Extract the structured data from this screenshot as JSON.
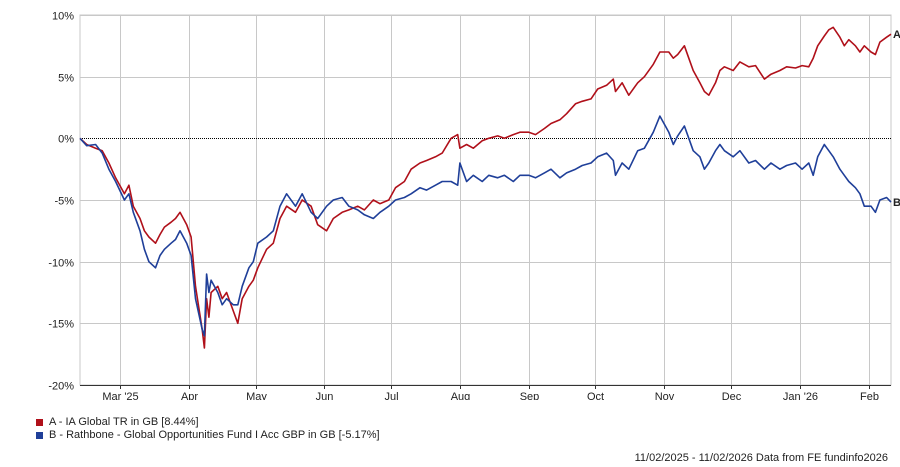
{
  "chart_data": {
    "type": "line",
    "title": "",
    "xlabel": "",
    "ylabel": "",
    "ylim": [
      -20,
      10
    ],
    "y_ticks": [
      10,
      5,
      0,
      -5,
      -10,
      -15,
      -20
    ],
    "y_tick_labels": [
      "10%",
      "5%",
      "0%",
      "-5%",
      "-10%",
      "-15%",
      "-20%"
    ],
    "x_range": [
      "2025-02-11",
      "2026-02-11"
    ],
    "x_ticks": [
      {
        "date": "2025-03-01",
        "label": "Mar '25"
      },
      {
        "date": "2025-04-01",
        "label": "Apr"
      },
      {
        "date": "2025-05-01",
        "label": "May"
      },
      {
        "date": "2025-06-01",
        "label": "Jun"
      },
      {
        "date": "2025-07-01",
        "label": "Jul"
      },
      {
        "date": "2025-08-01",
        "label": "Aug"
      },
      {
        "date": "2025-09-01",
        "label": "Sep"
      },
      {
        "date": "2025-10-01",
        "label": "Oct"
      },
      {
        "date": "2025-11-01",
        "label": "Nov"
      },
      {
        "date": "2025-12-01",
        "label": "Dec"
      },
      {
        "date": "2026-01-01",
        "label": "Jan '26"
      },
      {
        "date": "2026-02-01",
        "label": "Feb"
      }
    ],
    "grid": true,
    "legend_position": "bottom-left",
    "series": [
      {
        "name": "A - IA Global TR in GB [8.44%]",
        "end_label": "A",
        "color": "#b0101a",
        "points": [
          [
            "2025-02-11",
            0
          ],
          [
            "2025-02-14",
            -0.5
          ],
          [
            "2025-02-18",
            -0.8
          ],
          [
            "2025-02-21",
            -1.0
          ],
          [
            "2025-02-24",
            -2.0
          ],
          [
            "2025-02-27",
            -3.2
          ],
          [
            "2025-03-03",
            -4.5
          ],
          [
            "2025-03-05",
            -3.8
          ],
          [
            "2025-03-07",
            -5.5
          ],
          [
            "2025-03-10",
            -6.5
          ],
          [
            "2025-03-12",
            -7.5
          ],
          [
            "2025-03-14",
            -8.0
          ],
          [
            "2025-03-17",
            -8.5
          ],
          [
            "2025-03-19",
            -7.8
          ],
          [
            "2025-03-21",
            -7.2
          ],
          [
            "2025-03-24",
            -6.8
          ],
          [
            "2025-03-26",
            -6.5
          ],
          [
            "2025-03-28",
            -6.0
          ],
          [
            "2025-03-31",
            -7.0
          ],
          [
            "2025-04-02",
            -8.0
          ],
          [
            "2025-04-04",
            -12.0
          ],
          [
            "2025-04-07",
            -15.5
          ],
          [
            "2025-04-08",
            -17.0
          ],
          [
            "2025-04-09",
            -13.0
          ],
          [
            "2025-04-10",
            -14.5
          ],
          [
            "2025-04-11",
            -12.5
          ],
          [
            "2025-04-14",
            -12.0
          ],
          [
            "2025-04-16",
            -13.0
          ],
          [
            "2025-04-18",
            -12.5
          ],
          [
            "2025-04-21",
            -14.0
          ],
          [
            "2025-04-23",
            -15.0
          ],
          [
            "2025-04-25",
            -13.0
          ],
          [
            "2025-04-28",
            -12.0
          ],
          [
            "2025-04-30",
            -11.5
          ],
          [
            "2025-05-02",
            -10.5
          ],
          [
            "2025-05-06",
            -9.0
          ],
          [
            "2025-05-09",
            -8.5
          ],
          [
            "2025-05-12",
            -6.5
          ],
          [
            "2025-05-15",
            -5.5
          ],
          [
            "2025-05-19",
            -6.0
          ],
          [
            "2025-05-22",
            -5.0
          ],
          [
            "2025-05-26",
            -5.5
          ],
          [
            "2025-05-29",
            -7.0
          ],
          [
            "2025-06-02",
            -7.5
          ],
          [
            "2025-06-05",
            -6.5
          ],
          [
            "2025-06-09",
            -6.0
          ],
          [
            "2025-06-12",
            -5.8
          ],
          [
            "2025-06-16",
            -5.5
          ],
          [
            "2025-06-19",
            -5.8
          ],
          [
            "2025-06-23",
            -5.0
          ],
          [
            "2025-06-26",
            -5.3
          ],
          [
            "2025-06-30",
            -5.0
          ],
          [
            "2025-07-03",
            -4.0
          ],
          [
            "2025-07-07",
            -3.5
          ],
          [
            "2025-07-10",
            -2.5
          ],
          [
            "2025-07-14",
            -2.0
          ],
          [
            "2025-07-17",
            -1.8
          ],
          [
            "2025-07-21",
            -1.5
          ],
          [
            "2025-07-24",
            -1.2
          ],
          [
            "2025-07-28",
            0.0
          ],
          [
            "2025-07-31",
            0.3
          ],
          [
            "2025-08-01",
            -0.8
          ],
          [
            "2025-08-04",
            -0.5
          ],
          [
            "2025-08-07",
            -0.8
          ],
          [
            "2025-08-11",
            -0.2
          ],
          [
            "2025-08-14",
            0.0
          ],
          [
            "2025-08-18",
            0.2
          ],
          [
            "2025-08-21",
            0.0
          ],
          [
            "2025-08-25",
            0.3
          ],
          [
            "2025-08-28",
            0.5
          ],
          [
            "2025-09-01",
            0.5
          ],
          [
            "2025-09-04",
            0.3
          ],
          [
            "2025-09-08",
            0.8
          ],
          [
            "2025-09-11",
            1.2
          ],
          [
            "2025-09-15",
            1.5
          ],
          [
            "2025-09-18",
            2.0
          ],
          [
            "2025-09-22",
            2.8
          ],
          [
            "2025-09-25",
            3.0
          ],
          [
            "2025-09-29",
            3.2
          ],
          [
            "2025-10-02",
            4.0
          ],
          [
            "2025-10-06",
            4.3
          ],
          [
            "2025-10-09",
            4.8
          ],
          [
            "2025-10-10",
            3.8
          ],
          [
            "2025-10-13",
            4.5
          ],
          [
            "2025-10-16",
            3.5
          ],
          [
            "2025-10-20",
            4.5
          ],
          [
            "2025-10-23",
            5.0
          ],
          [
            "2025-10-27",
            6.0
          ],
          [
            "2025-10-30",
            7.0
          ],
          [
            "2025-11-03",
            7.0
          ],
          [
            "2025-11-05",
            6.5
          ],
          [
            "2025-11-07",
            6.8
          ],
          [
            "2025-11-10",
            7.5
          ],
          [
            "2025-11-12",
            6.5
          ],
          [
            "2025-11-14",
            5.5
          ],
          [
            "2025-11-17",
            4.5
          ],
          [
            "2025-11-19",
            3.8
          ],
          [
            "2025-11-21",
            3.5
          ],
          [
            "2025-11-24",
            4.5
          ],
          [
            "2025-11-26",
            5.5
          ],
          [
            "2025-11-28",
            5.8
          ],
          [
            "2025-12-02",
            5.5
          ],
          [
            "2025-12-05",
            6.2
          ],
          [
            "2025-12-09",
            5.8
          ],
          [
            "2025-12-12",
            5.9
          ],
          [
            "2025-12-16",
            4.8
          ],
          [
            "2025-12-19",
            5.2
          ],
          [
            "2025-12-23",
            5.5
          ],
          [
            "2025-12-26",
            5.8
          ],
          [
            "2025-12-30",
            5.7
          ],
          [
            "2026-01-02",
            5.9
          ],
          [
            "2026-01-05",
            5.8
          ],
          [
            "2026-01-07",
            6.5
          ],
          [
            "2026-01-09",
            7.5
          ],
          [
            "2026-01-12",
            8.3
          ],
          [
            "2026-01-14",
            8.8
          ],
          [
            "2026-01-16",
            9.0
          ],
          [
            "2026-01-19",
            8.2
          ],
          [
            "2026-01-21",
            7.5
          ],
          [
            "2026-01-23",
            8.0
          ],
          [
            "2026-01-26",
            7.5
          ],
          [
            "2026-01-28",
            7.0
          ],
          [
            "2026-01-30",
            7.5
          ],
          [
            "2026-02-02",
            7.0
          ],
          [
            "2026-02-04",
            6.8
          ],
          [
            "2026-02-06",
            7.8
          ],
          [
            "2026-02-09",
            8.2
          ],
          [
            "2026-02-11",
            8.44
          ]
        ]
      },
      {
        "name": "B - Rathbone - Global Opportunities Fund I Acc GBP in GB [-5.17%]",
        "end_label": "B",
        "color": "#1f3f99",
        "points": [
          [
            "2025-02-11",
            0
          ],
          [
            "2025-02-14",
            -0.6
          ],
          [
            "2025-02-18",
            -0.5
          ],
          [
            "2025-02-21",
            -1.2
          ],
          [
            "2025-02-24",
            -2.5
          ],
          [
            "2025-02-27",
            -3.5
          ],
          [
            "2025-03-03",
            -5.0
          ],
          [
            "2025-03-05",
            -4.5
          ],
          [
            "2025-03-07",
            -6.0
          ],
          [
            "2025-03-10",
            -7.5
          ],
          [
            "2025-03-12",
            -9.0
          ],
          [
            "2025-03-14",
            -10.0
          ],
          [
            "2025-03-17",
            -10.5
          ],
          [
            "2025-03-19",
            -9.5
          ],
          [
            "2025-03-21",
            -9.0
          ],
          [
            "2025-03-24",
            -8.5
          ],
          [
            "2025-03-26",
            -8.2
          ],
          [
            "2025-03-28",
            -7.5
          ],
          [
            "2025-03-31",
            -8.5
          ],
          [
            "2025-04-02",
            -9.5
          ],
          [
            "2025-04-04",
            -13.0
          ],
          [
            "2025-04-07",
            -15.5
          ],
          [
            "2025-04-08",
            -16.0
          ],
          [
            "2025-04-09",
            -11.0
          ],
          [
            "2025-04-10",
            -12.5
          ],
          [
            "2025-04-11",
            -11.5
          ],
          [
            "2025-04-14",
            -12.5
          ],
          [
            "2025-04-16",
            -13.5
          ],
          [
            "2025-04-18",
            -13.0
          ],
          [
            "2025-04-21",
            -13.5
          ],
          [
            "2025-04-23",
            -13.5
          ],
          [
            "2025-04-25",
            -12.0
          ],
          [
            "2025-04-28",
            -10.5
          ],
          [
            "2025-04-30",
            -10.0
          ],
          [
            "2025-05-02",
            -8.5
          ],
          [
            "2025-05-06",
            -8.0
          ],
          [
            "2025-05-09",
            -7.5
          ],
          [
            "2025-05-12",
            -5.5
          ],
          [
            "2025-05-15",
            -4.5
          ],
          [
            "2025-05-19",
            -5.5
          ],
          [
            "2025-05-22",
            -4.5
          ],
          [
            "2025-05-26",
            -6.0
          ],
          [
            "2025-05-29",
            -6.5
          ],
          [
            "2025-06-02",
            -5.5
          ],
          [
            "2025-06-05",
            -5.0
          ],
          [
            "2025-06-09",
            -4.8
          ],
          [
            "2025-06-12",
            -5.5
          ],
          [
            "2025-06-16",
            -5.8
          ],
          [
            "2025-06-19",
            -6.2
          ],
          [
            "2025-06-23",
            -6.5
          ],
          [
            "2025-06-26",
            -6.0
          ],
          [
            "2025-06-30",
            -5.5
          ],
          [
            "2025-07-03",
            -5.0
          ],
          [
            "2025-07-07",
            -4.8
          ],
          [
            "2025-07-10",
            -4.5
          ],
          [
            "2025-07-14",
            -4.0
          ],
          [
            "2025-07-17",
            -4.2
          ],
          [
            "2025-07-21",
            -3.8
          ],
          [
            "2025-07-24",
            -3.5
          ],
          [
            "2025-07-28",
            -3.5
          ],
          [
            "2025-07-31",
            -3.8
          ],
          [
            "2025-08-01",
            -2.0
          ],
          [
            "2025-08-04",
            -3.5
          ],
          [
            "2025-08-07",
            -3.0
          ],
          [
            "2025-08-11",
            -3.5
          ],
          [
            "2025-08-14",
            -3.0
          ],
          [
            "2025-08-18",
            -3.2
          ],
          [
            "2025-08-21",
            -3.0
          ],
          [
            "2025-08-25",
            -3.5
          ],
          [
            "2025-08-28",
            -3.0
          ],
          [
            "2025-09-01",
            -3.0
          ],
          [
            "2025-09-04",
            -3.2
          ],
          [
            "2025-09-08",
            -2.8
          ],
          [
            "2025-09-11",
            -2.5
          ],
          [
            "2025-09-15",
            -3.2
          ],
          [
            "2025-09-18",
            -2.8
          ],
          [
            "2025-09-22",
            -2.5
          ],
          [
            "2025-09-25",
            -2.2
          ],
          [
            "2025-09-29",
            -2.0
          ],
          [
            "2025-10-02",
            -1.5
          ],
          [
            "2025-10-06",
            -1.2
          ],
          [
            "2025-10-09",
            -1.8
          ],
          [
            "2025-10-10",
            -3.0
          ],
          [
            "2025-10-13",
            -2.0
          ],
          [
            "2025-10-16",
            -2.5
          ],
          [
            "2025-10-20",
            -1.0
          ],
          [
            "2025-10-23",
            -0.8
          ],
          [
            "2025-10-27",
            0.5
          ],
          [
            "2025-10-30",
            1.8
          ],
          [
            "2025-11-03",
            0.5
          ],
          [
            "2025-11-05",
            -0.5
          ],
          [
            "2025-11-07",
            0.2
          ],
          [
            "2025-11-10",
            1.0
          ],
          [
            "2025-11-12",
            0.0
          ],
          [
            "2025-11-14",
            -1.0
          ],
          [
            "2025-11-17",
            -1.5
          ],
          [
            "2025-11-19",
            -2.5
          ],
          [
            "2025-11-21",
            -2.0
          ],
          [
            "2025-11-24",
            -1.0
          ],
          [
            "2025-11-26",
            -0.5
          ],
          [
            "2025-11-28",
            -1.0
          ],
          [
            "2025-12-02",
            -1.5
          ],
          [
            "2025-12-05",
            -1.0
          ],
          [
            "2025-12-09",
            -2.0
          ],
          [
            "2025-12-12",
            -1.8
          ],
          [
            "2025-12-16",
            -2.5
          ],
          [
            "2025-12-19",
            -2.0
          ],
          [
            "2025-12-23",
            -2.5
          ],
          [
            "2025-12-26",
            -2.2
          ],
          [
            "2025-12-30",
            -2.0
          ],
          [
            "2026-01-02",
            -2.5
          ],
          [
            "2026-01-05",
            -2.0
          ],
          [
            "2026-01-07",
            -3.0
          ],
          [
            "2026-01-09",
            -1.5
          ],
          [
            "2026-01-12",
            -0.5
          ],
          [
            "2026-01-14",
            -1.0
          ],
          [
            "2026-01-16",
            -1.5
          ],
          [
            "2026-01-19",
            -2.5
          ],
          [
            "2026-01-21",
            -3.0
          ],
          [
            "2026-01-23",
            -3.5
          ],
          [
            "2026-01-26",
            -4.0
          ],
          [
            "2026-01-28",
            -4.5
          ],
          [
            "2026-01-30",
            -5.5
          ],
          [
            "2026-02-02",
            -5.5
          ],
          [
            "2026-02-04",
            -6.0
          ],
          [
            "2026-02-06",
            -5.0
          ],
          [
            "2026-02-09",
            -4.8
          ],
          [
            "2026-02-11",
            -5.17
          ]
        ]
      }
    ]
  },
  "legend": {
    "items": [
      {
        "label": "A - IA Global TR in GB [8.44%]",
        "color": "#b0101a"
      },
      {
        "label": "B - Rathbone - Global Opportunities Fund I Acc GBP in GB [-5.17%]",
        "color": "#1f3f99"
      }
    ]
  },
  "footer": {
    "text": "11/02/2025 - 11/02/2026 Data from FE fundinfo2026"
  },
  "colors": {
    "grid": "#c8c8c8",
    "axis": "#333333",
    "zero_line": "#000000"
  }
}
